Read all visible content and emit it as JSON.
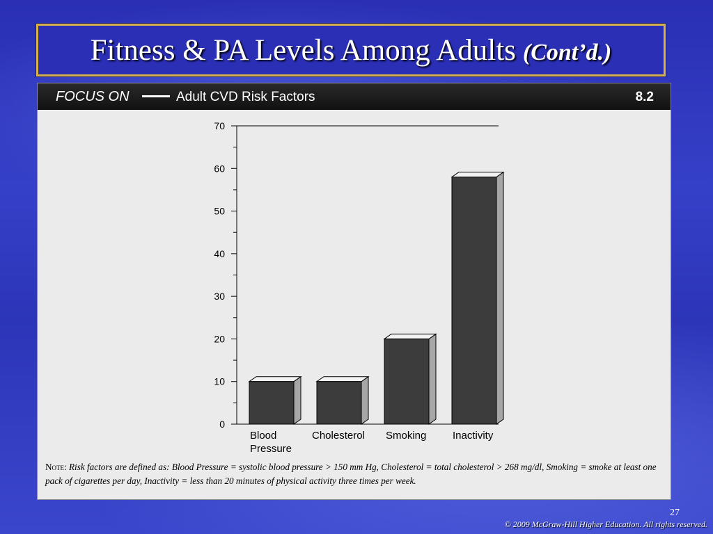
{
  "slide": {
    "title": "Fitness & PA Levels Among Adults",
    "title_suffix": "(Cont’d.)",
    "page_number": "27",
    "copyright": "© 2009 McGraw-Hill Higher Education. All rights reserved."
  },
  "panel": {
    "label": "FOCUS ON",
    "heading": "Adult CVD Risk Factors",
    "number": "8.2",
    "note_label": "Note:",
    "note_text": "Risk factors are defined as: Blood Pressure = systolic blood pressure > 150 mm Hg, Cholesterol = total cholesterol > 268 mg/dl, Smoking = smoke at least one pack of cigarettes per day, Inactivity = less than 20 minutes of physical activity three times per week."
  },
  "colors": {
    "bar_front": "#3c3c3c",
    "bar_side": "#a6a6a6",
    "bar_top": "#f4f4f4",
    "title_border": "#d8b24a"
  },
  "chart_data": {
    "type": "bar",
    "categories": [
      "Blood Pressure",
      "Cholesterol",
      "Smoking",
      "Inactivity"
    ],
    "category_lines": [
      [
        "Blood",
        "Pressure"
      ],
      [
        "Cholesterol"
      ],
      [
        "Smoking"
      ],
      [
        "Inactivity"
      ]
    ],
    "values": [
      10,
      10,
      20,
      58
    ],
    "ylim": [
      0,
      70
    ],
    "yticks": [
      0,
      10,
      20,
      30,
      40,
      50,
      60,
      70
    ],
    "title": "",
    "xlabel": "",
    "ylabel": "",
    "grid": false,
    "legend": "none"
  }
}
